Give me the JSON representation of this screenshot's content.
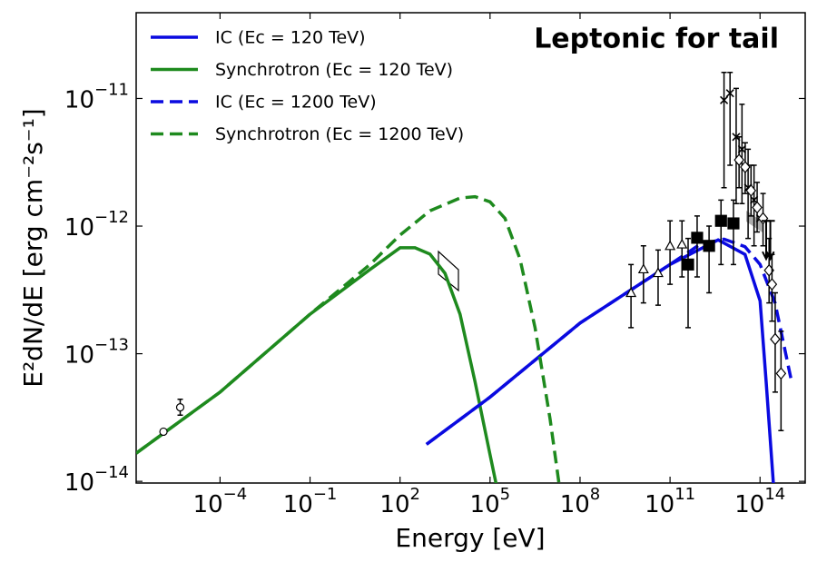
{
  "chart_data": {
    "type": "line",
    "title": "Leptonic for tail",
    "x_label": "Energy [eV]",
    "y_label": "E²dN/dE [erg cm⁻²s⁻¹]",
    "xscale": "log",
    "yscale": "log",
    "xlim": [
      1.6e-07,
      3200000000000000.0
    ],
    "ylim": [
      9.7e-15,
      4.7e-11
    ],
    "xticks": [
      {
        "value": 0.0001,
        "label": "10−4"
      },
      {
        "value": 0.1,
        "label": "10−1"
      },
      {
        "value": 100,
        "label": "102"
      },
      {
        "value": 100000,
        "label": "105"
      },
      {
        "value": 100000000,
        "label": "108"
      },
      {
        "value": 100000000000,
        "label": "1011"
      },
      {
        "value": 100000000000000,
        "label": "1014"
      }
    ],
    "yticks": [
      {
        "value": 1e-14,
        "label": "10−14"
      },
      {
        "value": 1e-13,
        "label": "10−13"
      },
      {
        "value": 1e-12,
        "label": "10−12"
      },
      {
        "value": 1e-11,
        "label": "10−11"
      }
    ],
    "legend": "upper left",
    "series": [
      {
        "name": "IC (Ec = 120 TeV)",
        "color": "#0a0ae0",
        "linestyle": "solid",
        "x": [
          760,
          100000,
          100000000,
          100000000000,
          4000000000000,
          31600000000000,
          100000000000000,
          160000000000000,
          280000000000000
        ],
        "values": [
          1.95e-14,
          4.57e-14,
          1.74e-13,
          5e-13,
          7.8e-13,
          6e-13,
          2.6e-13,
          6e-14,
          9.5e-15
        ]
      },
      {
        "name": "Synchrotron (Ec = 120 TeV)",
        "color": "#1e8a1e",
        "linestyle": "solid",
        "x": [
          1.6e-07,
          0.0001,
          0.1,
          10,
          100,
          316,
          1000,
          3160,
          10000,
          31600,
          100000,
          160000
        ],
        "values": [
          1.66e-14,
          5e-14,
          2.04e-13,
          4.57e-13,
          6.76e-13,
          6.76e-13,
          6.03e-13,
          4.27e-13,
          2.04e-13,
          6.03e-14,
          1.62e-14,
          9.5e-15
        ]
      },
      {
        "name": "IC (Ec = 1200 TeV)",
        "color": "#0a0ae0",
        "linestyle": "dashed",
        "x": [
          760,
          100000,
          100000000,
          100000000000,
          1000000000000,
          6300000000000,
          31600000000000,
          100000000000000,
          316000000000000,
          1150000000000000
        ],
        "values": [
          1.95e-14,
          4.57e-14,
          1.74e-13,
          5e-13,
          7.2e-13,
          7.9e-13,
          6.9e-13,
          5e-13,
          2.5e-13,
          5.9e-14
        ]
      },
      {
        "name": "Synchrotron (Ec = 1200 TeV)",
        "color": "#1e8a1e",
        "linestyle": "dashed",
        "x": [
          1.6e-07,
          0.0001,
          0.1,
          10,
          100,
          1000,
          10000,
          31600,
          100000,
          316000,
          1000000,
          3160000,
          10000000,
          20000000
        ],
        "values": [
          1.66e-14,
          5e-14,
          2.04e-13,
          5e-13,
          8.5e-13,
          1.32e-12,
          1.66e-12,
          1.7e-12,
          1.55e-12,
          1.15e-12,
          5.5e-13,
          1.6e-13,
          3.1e-14,
          9.5e-15
        ]
      }
    ],
    "points": [
      {
        "marker": "circle",
        "x": [
          1.3e-06,
          4.7e-06
        ],
        "values": [
          2.45e-14,
          3.8e-14
        ],
        "ylow": [
          null,
          3.3e-14
        ],
        "yhigh": [
          null,
          4.4e-14
        ]
      },
      {
        "marker": "triangle",
        "x": [
          5000000000,
          13000000000,
          40000000000,
          100000000000,
          250000000000
        ],
        "values": [
          3e-13,
          4.6e-13,
          4.3e-13,
          7e-13,
          7.2e-13
        ],
        "ylow": [
          1.6e-13,
          2.5e-13,
          2.4e-13,
          3.5e-13,
          4e-13
        ],
        "yhigh": [
          5e-13,
          7e-13,
          6.5e-13,
          1.1e-12,
          1.1e-12
        ]
      },
      {
        "marker": "square",
        "x": [
          400000000000,
          800000000000,
          2000000000000,
          5000000000000,
          13000000000000
        ],
        "values": [
          5e-13,
          8.1e-13,
          7e-13,
          1.1e-12,
          1.05e-12
        ],
        "ylow": [
          1.6e-13,
          4e-13,
          3e-13,
          5e-13,
          5e-13
        ],
        "yhigh": [
          8e-13,
          1.2e-12,
          1e-12,
          1.6e-12,
          1.6e-12
        ]
      },
      {
        "marker": "cross",
        "x": [
          6300000000000,
          10000000000000,
          16000000000000,
          25000000000000,
          40000000000000,
          63000000000000,
          100000000000000
        ],
        "values": [
          9.7e-12,
          1.1e-11,
          5e-12,
          4e-12,
          2e-12,
          1.6e-12,
          1.15e-12
        ],
        "ylow": [
          2e-12,
          3e-12,
          1.5e-12,
          1.5e-12,
          8e-13,
          7e-13,
          null
        ],
        "yhigh": [
          1.6e-11,
          1.6e-11,
          1.2e-11,
          9e-12,
          4e-12,
          3e-12,
          null
        ]
      },
      {
        "marker": "diamond",
        "x": [
          20000000000000,
          32000000000000,
          50000000000000,
          80000000000000,
          126000000000000,
          200000000000000,
          250000000000000,
          320000000000000,
          500000000000000
        ],
        "values": [
          3.3e-12,
          2.9e-12,
          1.9e-12,
          1.4e-12,
          1.15e-12,
          4.5e-13,
          3.5e-13,
          1.3e-13,
          7e-14
        ],
        "ylow": [
          2e-12,
          1.8e-12,
          1.2e-12,
          9e-13,
          7e-13,
          2.5e-13,
          1.8e-13,
          5e-14,
          2.5e-14
        ],
        "yhigh": [
          5e-12,
          4.5e-12,
          3e-12,
          2.2e-12,
          1.8e-12,
          8e-13,
          6e-13,
          3e-13,
          1.5e-13
        ]
      },
      {
        "marker": "upper-limit",
        "x": [
          160000000000000,
          220000000000000
        ],
        "values": [
          1.1e-12,
          1.1e-12
        ]
      }
    ]
  }
}
